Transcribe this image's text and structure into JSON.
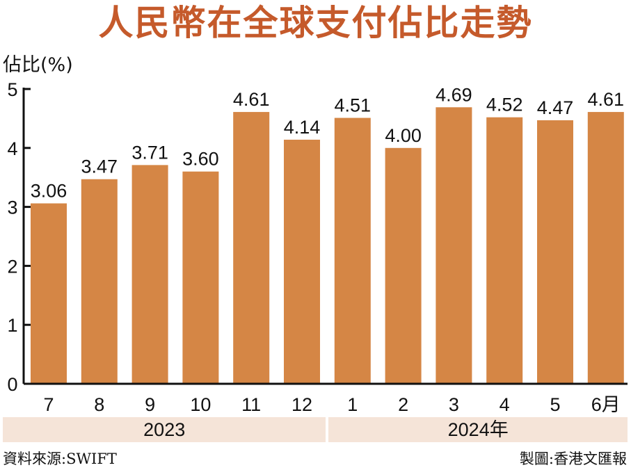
{
  "chart_data": {
    "type": "bar",
    "title": "人民幣在全球支付佔比走勢",
    "ylabel": "佔比(%)",
    "xlabel": "",
    "ylim": [
      0,
      5
    ],
    "yticks": [
      "0",
      "1",
      "2",
      "3",
      "4",
      "5"
    ],
    "grid": false,
    "categories": [
      "7",
      "8",
      "9",
      "10",
      "11",
      "12",
      "1",
      "2",
      "3",
      "4",
      "5",
      "6月"
    ],
    "values": [
      3.06,
      3.47,
      3.71,
      3.6,
      4.61,
      4.14,
      4.51,
      4.0,
      4.69,
      4.52,
      4.47,
      4.61
    ],
    "value_labels": [
      "3.06",
      "3.47",
      "3.71",
      "3.60",
      "4.61",
      "4.14",
      "4.51",
      "4.00",
      "4.69",
      "4.52",
      "4.47",
      "4.61"
    ],
    "year_groups": [
      {
        "label": "2023",
        "count": 6
      },
      {
        "label": "2024年",
        "count": 6
      }
    ],
    "bar_color": "#d58645",
    "source": "資料來源:SWIFT",
    "credit": "製圖:香港文匯報"
  },
  "colors": {
    "title": "#c55a2b",
    "year_band": "#f5e4d8"
  }
}
